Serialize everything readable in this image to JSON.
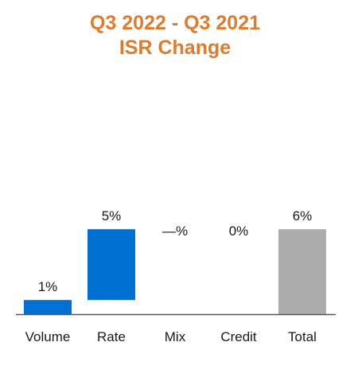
{
  "chart_data": {
    "type": "bar",
    "subtype": "waterfall",
    "title_lines": [
      "Q3 2022 - Q3 2021",
      "ISR Change"
    ],
    "categories": [
      "Volume",
      "Rate",
      "Mix",
      "Credit",
      "Total"
    ],
    "values": [
      1,
      5,
      0,
      0,
      6
    ],
    "data_labels": [
      "1%",
      "5%",
      "—%",
      "0%",
      "6%"
    ],
    "bar_kinds": [
      "delta",
      "delta",
      "delta",
      "delta",
      "total"
    ],
    "xlabel": "",
    "ylabel": "",
    "ylim": [
      0,
      6
    ],
    "grid": false,
    "legend": "none"
  },
  "colors": {
    "title": "#e07b2c",
    "delta_bar": "#0070d2",
    "total_bar": "#acacac",
    "axis": "#555555",
    "text": "#1a1a1a"
  }
}
